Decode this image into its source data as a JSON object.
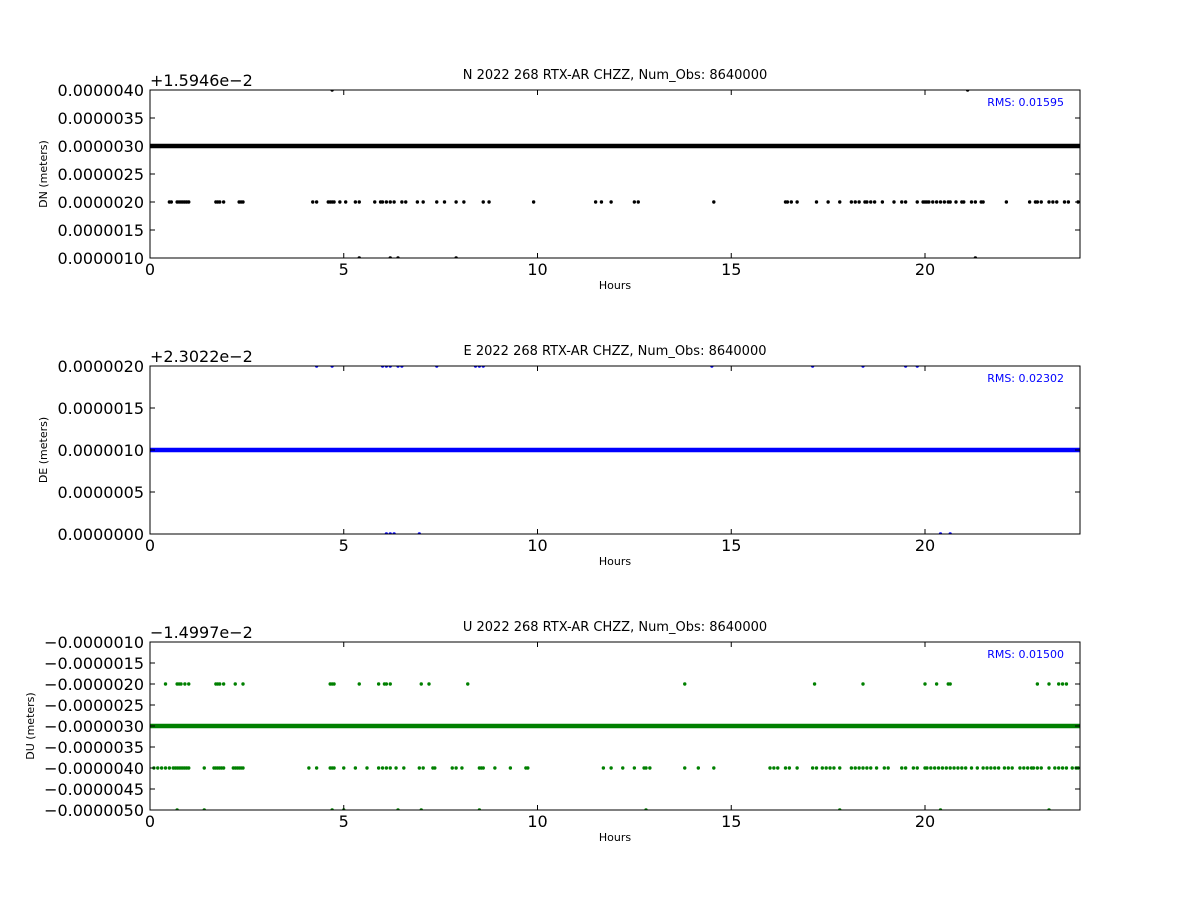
{
  "chart_data": [
    {
      "type": "scatter",
      "title": "N 2022 268 RTX-AR  CHZZ, Num_Obs: 8640000",
      "xlabel": "Hours",
      "ylabel": "DN (meters)",
      "y_offset_label": "+1.5946e−2",
      "rms_label": "RMS:  0.01595",
      "color": "#000000",
      "xlim": [
        0,
        24
      ],
      "ylim": [
        1e-06,
        4e-06
      ],
      "x_ticks": [
        0,
        5,
        10,
        15,
        20
      ],
      "x_tick_labels": [
        "0",
        "5",
        "10",
        "15",
        "20"
      ],
      "y_ticks": [
        1e-06,
        1.5e-06,
        2e-06,
        2.5e-06,
        3e-06,
        3.5e-06,
        4e-06
      ],
      "y_tick_labels": [
        "0.0000010",
        "0.0000015",
        "0.0000020",
        "0.0000025",
        "0.0000030",
        "0.0000035",
        "0.0000040"
      ],
      "dense_line_y": 3e-06,
      "series": [
        {
          "y": 2e-06,
          "x": [
            0.5,
            0.55,
            0.7,
            0.75,
            0.8,
            0.85,
            0.9,
            0.95,
            1.0,
            1.7,
            1.75,
            1.8,
            1.9,
            2.3,
            2.35,
            2.4,
            4.2,
            4.3,
            4.6,
            4.65,
            4.7,
            4.75,
            4.9,
            5.05,
            5.3,
            5.4,
            5.8,
            5.95,
            6.0,
            6.1,
            6.2,
            6.3,
            6.5,
            6.6,
            6.9,
            7.05,
            7.4,
            7.6,
            7.9,
            8.1,
            8.6,
            8.75,
            9.9,
            11.5,
            11.65,
            11.9,
            12.5,
            12.6,
            14.55,
            16.4,
            16.45,
            16.55,
            16.7,
            17.2,
            17.5,
            17.8,
            18.1,
            18.2,
            18.3,
            18.45,
            18.5,
            18.6,
            18.7,
            18.9,
            19.2,
            19.4,
            19.5,
            19.8,
            19.95,
            20.0,
            20.05,
            20.1,
            20.2,
            20.3,
            20.4,
            20.5,
            20.6,
            20.65,
            20.8,
            20.95,
            21.0,
            21.2,
            21.3,
            21.45,
            21.5,
            22.1,
            22.7,
            22.85,
            22.9,
            23.0,
            23.2,
            23.3,
            23.4,
            23.6,
            23.7,
            23.95
          ]
        },
        {
          "y": 4e-06,
          "x": [
            4.7,
            21.1
          ]
        },
        {
          "y": 1e-06,
          "x": [
            5.4,
            6.2,
            6.4,
            7.9,
            21.3
          ]
        }
      ]
    },
    {
      "type": "scatter",
      "title": "E 2022 268 RTX-AR  CHZZ, Num_Obs: 8640000",
      "xlabel": "Hours",
      "ylabel": "DE (meters)",
      "y_offset_label": "+2.3022e−2",
      "rms_label": "RMS:  0.02302",
      "color": "#0000ff",
      "xlim": [
        0,
        24
      ],
      "ylim": [
        0.0,
        2e-06
      ],
      "x_ticks": [
        0,
        5,
        10,
        15,
        20
      ],
      "x_tick_labels": [
        "0",
        "5",
        "10",
        "15",
        "20"
      ],
      "y_ticks": [
        0.0,
        5e-07,
        1e-06,
        1.5e-06,
        2e-06
      ],
      "y_tick_labels": [
        "0.0000000",
        "0.0000005",
        "0.0000010",
        "0.0000015",
        "0.0000020"
      ],
      "dense_line_y": 1e-06,
      "series": [
        {
          "y": 2e-06,
          "x": [
            4.3,
            4.7,
            6.0,
            6.1,
            6.2,
            6.4,
            6.5,
            7.4,
            8.4,
            8.5,
            8.6,
            14.5,
            17.1,
            18.4,
            19.5,
            19.8
          ]
        },
        {
          "y": 0.0,
          "x": [
            6.1,
            6.2,
            6.3,
            6.95,
            20.4,
            20.65
          ]
        }
      ]
    },
    {
      "type": "scatter",
      "title": "U 2022 268 RTX-AR  CHZZ, Num_Obs: 8640000",
      "xlabel": "Hours",
      "ylabel": "DU (meters)",
      "y_offset_label": "−1.4997e−2",
      "rms_label": "RMS:  0.01500",
      "color": "#008000",
      "xlim": [
        0,
        24
      ],
      "ylim": [
        -5e-06,
        -1e-06
      ],
      "x_ticks": [
        0,
        5,
        10,
        15,
        20
      ],
      "x_tick_labels": [
        "0",
        "5",
        "10",
        "15",
        "20"
      ],
      "y_ticks": [
        -5e-06,
        -4.5e-06,
        -4e-06,
        -3.5e-06,
        -3e-06,
        -2.5e-06,
        -2e-06,
        -1.5e-06,
        -1e-06
      ],
      "y_tick_labels": [
        "−0.0000050",
        "−0.0000045",
        "−0.0000040",
        "−0.0000035",
        "−0.0000030",
        "−0.0000025",
        "−0.0000020",
        "−0.0000015",
        "−0.0000010"
      ],
      "dense_line_y": -3e-06,
      "series": [
        {
          "y": -2e-06,
          "x": [
            0.4,
            0.7,
            0.75,
            0.8,
            0.9,
            1.0,
            1.7,
            1.75,
            1.8,
            1.9,
            2.2,
            2.4,
            4.65,
            4.7,
            4.75,
            5.4,
            5.9,
            6.05,
            6.1,
            6.2,
            7.0,
            7.2,
            8.2,
            13.8,
            17.15,
            18.4,
            20.0,
            20.3,
            20.6,
            20.65,
            22.9,
            23.2,
            23.45,
            23.55,
            23.65
          ]
        },
        {
          "y": -4e-06,
          "x": [
            0.1,
            0.2,
            0.3,
            0.4,
            0.5,
            0.6,
            0.65,
            0.7,
            0.75,
            0.8,
            0.85,
            0.9,
            0.95,
            1.0,
            1.4,
            1.65,
            1.7,
            1.75,
            1.8,
            1.85,
            1.9,
            2.15,
            2.2,
            2.25,
            2.3,
            2.35,
            2.4,
            4.1,
            4.3,
            4.65,
            4.7,
            4.75,
            5.0,
            5.3,
            5.6,
            5.9,
            6.0,
            6.1,
            6.2,
            6.35,
            6.55,
            6.95,
            7.05,
            7.3,
            7.35,
            7.8,
            7.9,
            8.05,
            8.5,
            8.55,
            8.6,
            8.9,
            9.3,
            9.7,
            9.75,
            11.7,
            11.9,
            12.2,
            12.5,
            12.75,
            12.8,
            12.9,
            13.8,
            14.15,
            14.55,
            16.0,
            16.1,
            16.2,
            16.4,
            16.5,
            16.7,
            17.1,
            17.2,
            17.35,
            17.45,
            17.55,
            17.65,
            17.8,
            18.1,
            18.2,
            18.3,
            18.4,
            18.5,
            18.6,
            18.75,
            18.95,
            19.05,
            19.4,
            19.5,
            19.7,
            19.8,
            20.0,
            20.05,
            20.15,
            20.25,
            20.35,
            20.45,
            20.55,
            20.65,
            20.75,
            20.85,
            20.95,
            21.05,
            21.2,
            21.35,
            21.5,
            21.6,
            21.7,
            21.8,
            21.9,
            22.05,
            22.15,
            22.25,
            22.45,
            22.55,
            22.65,
            22.75,
            22.8,
            22.9,
            23.0,
            23.2,
            23.35,
            23.45,
            23.55,
            23.65,
            23.8,
            23.9,
            23.95
          ]
        },
        {
          "y": -5e-06,
          "x": [
            0.7,
            1.4,
            4.7,
            5.0,
            6.4,
            7.0,
            8.5,
            12.8,
            17.8,
            20.4,
            23.2
          ]
        }
      ]
    }
  ]
}
